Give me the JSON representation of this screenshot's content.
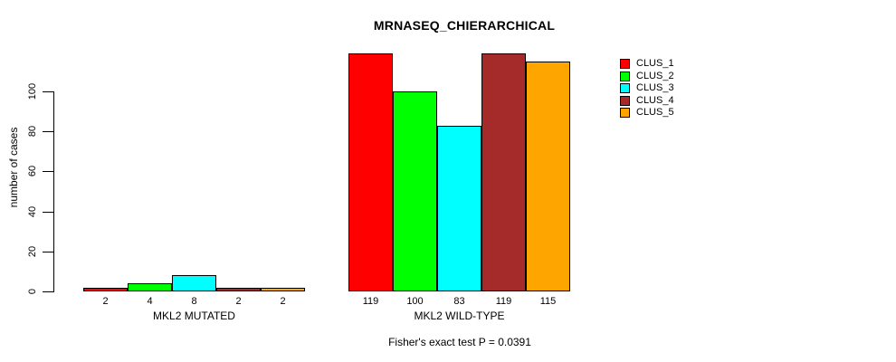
{
  "title": "MRNASEQ_CHIERARCHICAL",
  "subtitle": "Fisher's exact test P = 0.0391",
  "chart_data": {
    "type": "bar",
    "title": "MRNASEQ_CHIERARCHICAL",
    "xlabel": "",
    "ylabel": "number of cases",
    "yticks": [
      0,
      20,
      40,
      60,
      80,
      100
    ],
    "ylim": [
      0,
      119
    ],
    "grid": false,
    "legend_position": "right-outside",
    "bar_border_color": "#000000",
    "categories": [
      "MKL2 MUTATED",
      "MKL2 WILD-TYPE"
    ],
    "groups": [
      {
        "label": "MKL2 MUTATED",
        "values": [
          2,
          4,
          8,
          2,
          2
        ]
      },
      {
        "label": "MKL2 WILD-TYPE",
        "values": [
          119,
          100,
          83,
          119,
          115
        ]
      }
    ],
    "series": [
      {
        "name": "CLUS_1",
        "color": "#FF0000"
      },
      {
        "name": "CLUS_2",
        "color": "#00FF00"
      },
      {
        "name": "CLUS_3",
        "color": "#00FFFF"
      },
      {
        "name": "CLUS_4",
        "color": "#A52A2A"
      },
      {
        "name": "CLUS_5",
        "color": "#FFA500"
      }
    ],
    "annotation": "Fisher's exact test P = 0.0391"
  }
}
